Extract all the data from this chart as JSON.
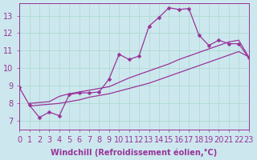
{
  "xlabel": "Windchill (Refroidissement éolien,°C)",
  "ylabel": "",
  "bg_color": "#cce8ee",
  "line_color": "#993399",
  "xlim": [
    0,
    23
  ],
  "ylim": [
    6.5,
    13.7
  ],
  "yticks": [
    7,
    8,
    9,
    10,
    11,
    12,
    13
  ],
  "xticks": [
    0,
    1,
    2,
    3,
    4,
    5,
    6,
    7,
    8,
    9,
    10,
    11,
    12,
    13,
    14,
    15,
    16,
    17,
    18,
    19,
    20,
    21,
    22,
    23
  ],
  "line1_x": [
    0,
    1,
    2,
    3,
    4,
    5,
    6,
    7,
    8,
    9,
    10,
    11,
    12,
    13,
    14,
    15,
    16,
    17,
    18,
    19,
    20,
    21,
    22,
    23
  ],
  "line1_y": [
    8.9,
    7.9,
    7.2,
    7.5,
    7.3,
    8.5,
    8.6,
    8.6,
    8.65,
    9.4,
    10.8,
    10.5,
    10.7,
    12.4,
    12.9,
    13.45,
    13.35,
    13.4,
    11.9,
    11.3,
    11.6,
    11.4,
    11.4,
    10.6
  ],
  "line2_x": [
    1,
    2,
    3,
    4,
    5,
    6,
    7,
    8,
    9,
    10,
    11,
    12,
    13,
    14,
    15,
    16,
    17,
    18,
    19,
    20,
    21,
    22,
    23
  ],
  "line2_y": [
    7.85,
    7.9,
    7.95,
    8.0,
    8.1,
    8.2,
    8.35,
    8.45,
    8.55,
    8.7,
    8.85,
    9.0,
    9.15,
    9.35,
    9.55,
    9.75,
    9.95,
    10.15,
    10.35,
    10.55,
    10.75,
    10.95,
    10.65
  ],
  "line3_x": [
    1,
    2,
    3,
    4,
    5,
    6,
    7,
    8,
    9,
    10,
    11,
    12,
    13,
    14,
    15,
    16,
    17,
    18,
    19,
    20,
    21,
    22,
    23
  ],
  "line3_y": [
    8.0,
    8.05,
    8.1,
    8.4,
    8.55,
    8.65,
    8.75,
    8.85,
    8.95,
    9.2,
    9.45,
    9.65,
    9.85,
    10.05,
    10.25,
    10.5,
    10.7,
    10.9,
    11.1,
    11.3,
    11.5,
    11.6,
    10.65
  ],
  "grid_color": "#aad8cc",
  "font_color": "#993399",
  "font_size": 7
}
